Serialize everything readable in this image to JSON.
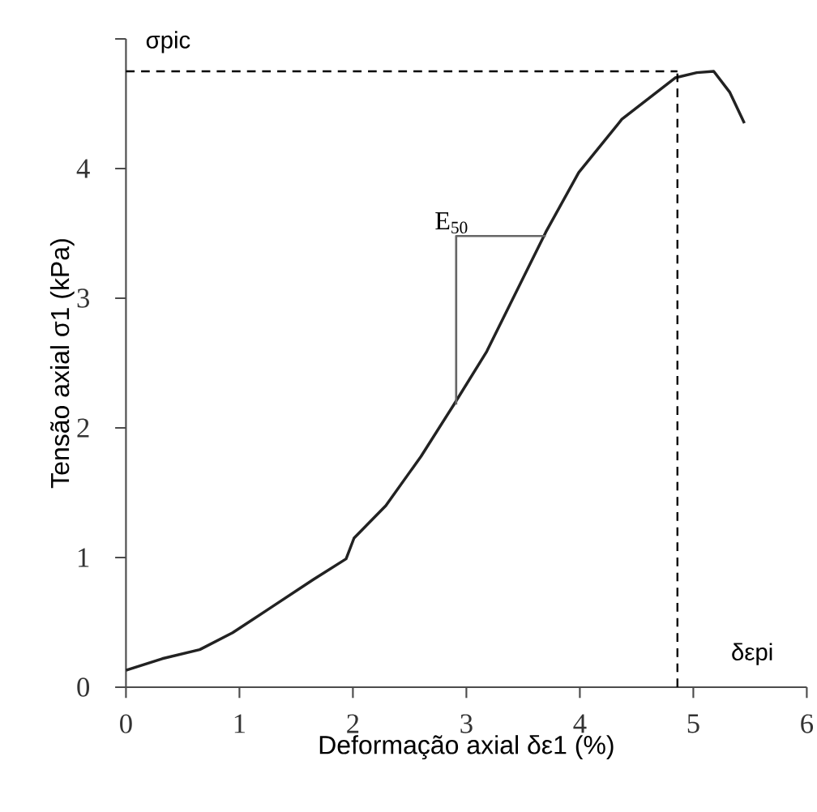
{
  "chart_data": {
    "type": "line",
    "xlabel": "Deformação axial δε1 (%)",
    "ylabel": "Tensão axial σ1 (kPa)",
    "xlim": [
      0,
      6
    ],
    "ylim": [
      0,
      5
    ],
    "xticks": [
      0,
      1,
      2,
      3,
      4,
      5,
      6
    ],
    "yticks": [
      0,
      1,
      2,
      3,
      4,
      {
        "value": 5,
        "label": null
      }
    ],
    "series": [
      {
        "color": "#222222",
        "x": [
          0,
          0.32,
          0.65,
          0.94,
          1.27,
          1.65,
          1.94,
          2.01,
          2.29,
          2.6,
          2.89,
          3.18,
          3.7,
          3.99,
          4.37,
          4.84,
          5.03,
          5.18,
          5.32,
          5.45
        ],
        "values": [
          0.13,
          0.22,
          0.29,
          0.42,
          0.61,
          0.83,
          0.99,
          1.15,
          1.4,
          1.78,
          2.18,
          2.59,
          3.51,
          3.97,
          4.38,
          4.7,
          4.74,
          4.75,
          4.59,
          4.35
        ]
      },
      {
        "type": "line",
        "color": "#666666",
        "x": [
          2.91,
          2.91,
          3.7
        ],
        "values": [
          2.18,
          3.48,
          3.48
        ]
      }
    ],
    "ref_lines": [
      {
        "axis": "y",
        "value": 4.75,
        "label": "σpic",
        "color": "#000000",
        "line_style": "dashed"
      },
      {
        "axis": "x",
        "value": 4.86,
        "label": "δεpi",
        "color": "#000000",
        "line_style": "dashed"
      }
    ],
    "annotations": [
      {
        "text": "E$_{50}$",
        "x": 2.91,
        "y": 3.48
      }
    ]
  }
}
